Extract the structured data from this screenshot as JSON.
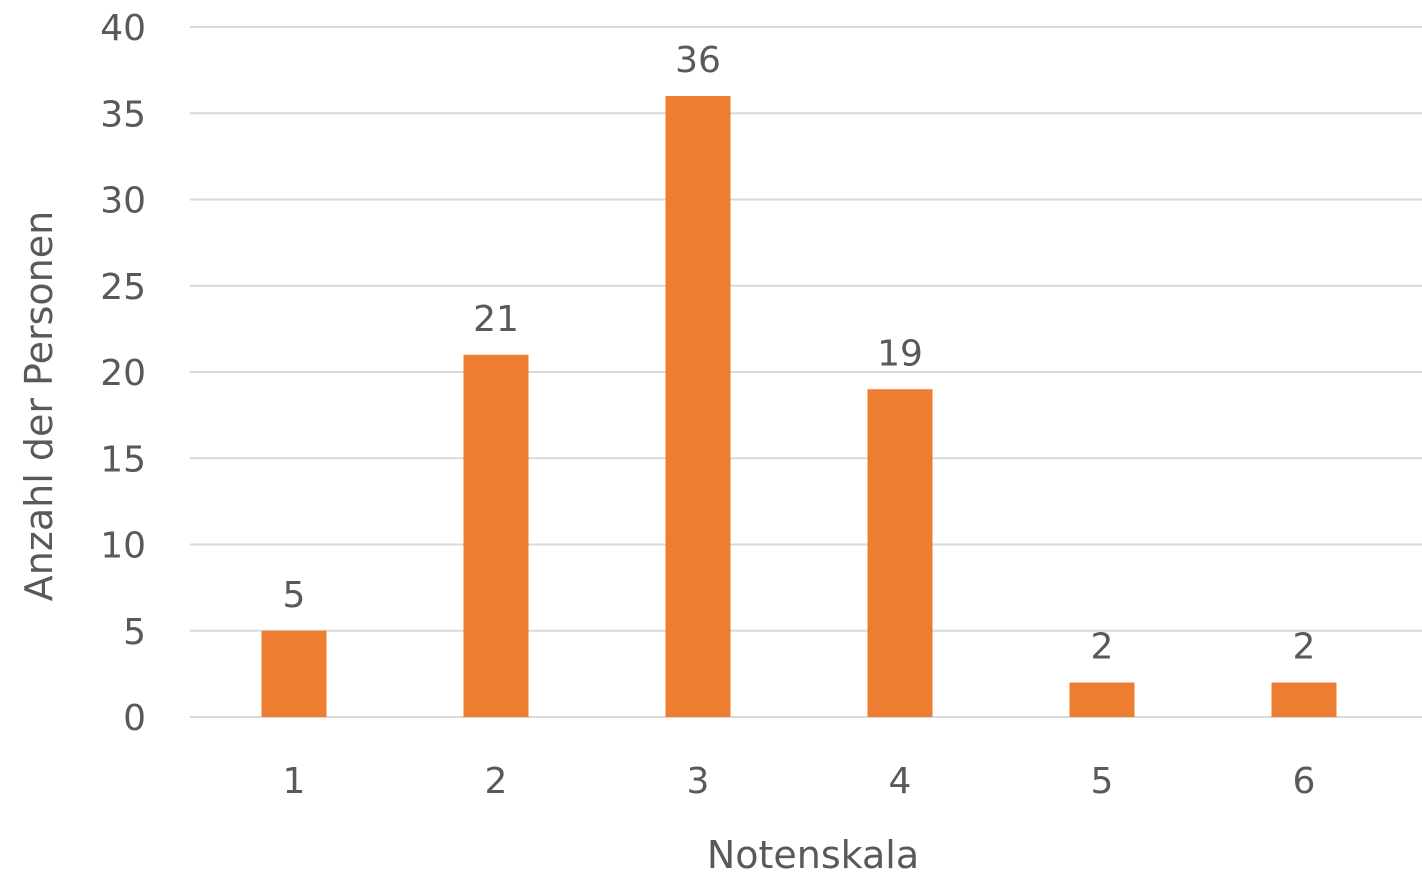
{
  "chart_data": {
    "type": "bar",
    "categories": [
      "1",
      "2",
      "3",
      "4",
      "5",
      "6"
    ],
    "values": [
      5,
      21,
      36,
      19,
      2,
      2
    ],
    "data_labels": [
      "5",
      "21",
      "36",
      "19",
      "2",
      "2"
    ],
    "y_ticks": [
      "0",
      "5",
      "10",
      "15",
      "20",
      "25",
      "30",
      "35",
      "40"
    ],
    "title": "",
    "xlabel": "Notenskala",
    "ylabel": "Anzahl der Personen",
    "ylim": [
      0,
      40
    ],
    "grid": true,
    "legend": "none",
    "bar_color": "#ED7D31"
  }
}
